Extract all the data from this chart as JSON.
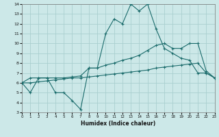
{
  "xlabel": "Humidex (Indice chaleur)",
  "xlim": [
    0,
    23
  ],
  "ylim": [
    3,
    14
  ],
  "xticks": [
    0,
    1,
    2,
    3,
    4,
    5,
    6,
    7,
    8,
    9,
    10,
    11,
    12,
    13,
    14,
    15,
    16,
    17,
    18,
    19,
    20,
    21,
    22,
    23
  ],
  "yticks": [
    3,
    4,
    5,
    6,
    7,
    8,
    9,
    10,
    11,
    12,
    13,
    14
  ],
  "bg_color": "#cce8e8",
  "grid_color": "#aacfcf",
  "line_color": "#1a6b6b",
  "line1_x": [
    0,
    1,
    2,
    3,
    4,
    5,
    6,
    7,
    8,
    9,
    10,
    11,
    12,
    13,
    14,
    15,
    16,
    17,
    18,
    19,
    20,
    21,
    22,
    23
  ],
  "line1_y": [
    6.0,
    5.0,
    6.5,
    6.5,
    5.0,
    5.0,
    4.2,
    3.3,
    7.5,
    7.5,
    11.0,
    12.5,
    12.0,
    14.0,
    13.3,
    14.0,
    11.5,
    9.5,
    9.0,
    8.5,
    8.3,
    7.0,
    7.0,
    6.5
  ],
  "line2_x": [
    0,
    1,
    2,
    3,
    4,
    5,
    6,
    7,
    8,
    9,
    10,
    11,
    12,
    13,
    14,
    15,
    16,
    17,
    18,
    19,
    20,
    21,
    22,
    23
  ],
  "line2_y": [
    6.0,
    6.5,
    6.5,
    6.5,
    6.5,
    6.5,
    6.6,
    6.7,
    7.5,
    7.5,
    7.8,
    8.0,
    8.3,
    8.5,
    8.8,
    9.3,
    9.8,
    10.0,
    9.5,
    9.5,
    10.0,
    10.0,
    7.2,
    6.5
  ],
  "line3_x": [
    0,
    1,
    2,
    3,
    4,
    5,
    6,
    7,
    8,
    9,
    10,
    11,
    12,
    13,
    14,
    15,
    16,
    17,
    18,
    19,
    20,
    21,
    22,
    23
  ],
  "line3_y": [
    6.0,
    6.0,
    6.1,
    6.2,
    6.3,
    6.4,
    6.5,
    6.5,
    6.6,
    6.7,
    6.8,
    6.9,
    7.0,
    7.1,
    7.2,
    7.3,
    7.5,
    7.6,
    7.7,
    7.8,
    7.9,
    8.0,
    7.0,
    6.5
  ]
}
